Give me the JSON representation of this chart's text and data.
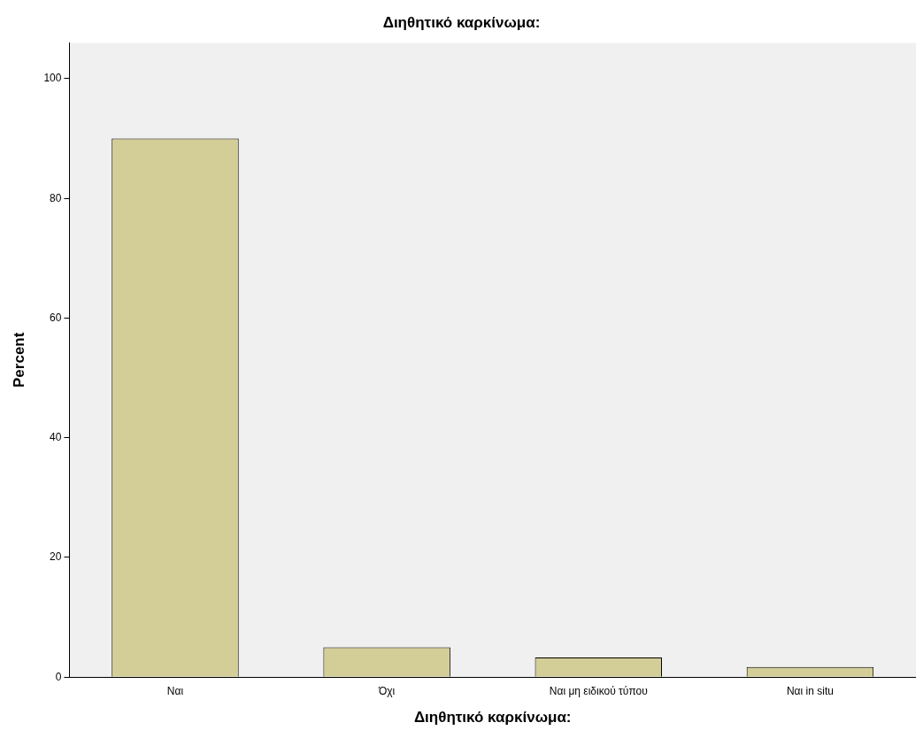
{
  "chart_data": {
    "type": "bar",
    "title": "Διηθητικό καρκίνωμα:",
    "xlabel": "Διηθητικό καρκίνωμα:",
    "ylabel": "Percent",
    "categories": [
      "Ναι",
      "Όχι",
      "Ναι μη ειδικού τύπου",
      "Ναι in situ"
    ],
    "values": [
      90,
      5,
      3.3,
      1.7
    ],
    "color": "#d3ce97",
    "ylim": [
      0,
      106
    ],
    "yticks": [
      0,
      20,
      40,
      60,
      80,
      100
    ],
    "grid": false,
    "legend": false
  }
}
